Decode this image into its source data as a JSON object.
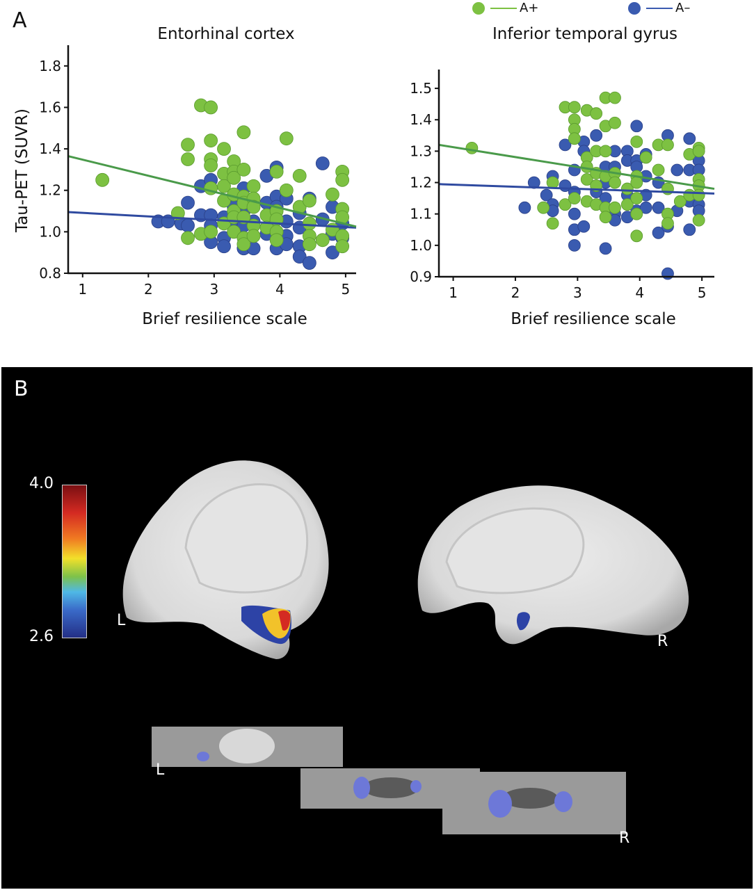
{
  "panel_a_label": "A",
  "panel_b_label": "B",
  "legend": [
    {
      "label": "A+",
      "color": "#7dc142"
    },
    {
      "label": "A–",
      "color": "#3a5bb0"
    }
  ],
  "chart_data": [
    {
      "type": "scatter",
      "title": "Entorhinal cortex",
      "xlabel": "Brief resilience scale",
      "ylabel": "Tau-PET (SUVR)",
      "xlim": [
        0.78,
        5.16
      ],
      "ylim": [
        0.8,
        1.9
      ],
      "xticks": [
        1,
        2,
        3,
        4,
        5
      ],
      "yticks": [
        0.8,
        1.0,
        1.2,
        1.4,
        1.6,
        1.8
      ],
      "ytick_labels": [
        "0.8",
        "1.0",
        "1.2",
        "1.4",
        "1.6",
        "1.8"
      ],
      "grid": false,
      "series": [
        {
          "name": "A–",
          "color": "#3a5bb0",
          "points": [
            [
              2.15,
              1.05
            ],
            [
              2.3,
              1.05
            ],
            [
              2.5,
              1.04
            ],
            [
              2.6,
              1.14
            ],
            [
              2.6,
              1.03
            ],
            [
              2.8,
              1.22
            ],
            [
              2.8,
              1.08
            ],
            [
              2.95,
              1.25
            ],
            [
              2.95,
              1.08
            ],
            [
              2.95,
              1.03
            ],
            [
              2.95,
              0.95
            ],
            [
              3.15,
              1.07
            ],
            [
              3.15,
              0.97
            ],
            [
              3.15,
              0.93
            ],
            [
              3.3,
              1.12
            ],
            [
              3.3,
              1.05
            ],
            [
              3.45,
              1.21
            ],
            [
              3.45,
              1.1
            ],
            [
              3.45,
              1.03
            ],
            [
              3.45,
              0.92
            ],
            [
              3.6,
              1.05
            ],
            [
              3.6,
              0.92
            ],
            [
              3.8,
              1.27
            ],
            [
              3.8,
              1.14
            ],
            [
              3.8,
              0.99
            ],
            [
              3.95,
              1.31
            ],
            [
              3.95,
              1.17
            ],
            [
              3.95,
              1.12
            ],
            [
              3.95,
              0.92
            ],
            [
              4.1,
              1.16
            ],
            [
              4.1,
              1.05
            ],
            [
              4.1,
              0.98
            ],
            [
              4.1,
              0.94
            ],
            [
              4.3,
              1.09
            ],
            [
              4.3,
              1.02
            ],
            [
              4.3,
              0.93
            ],
            [
              4.3,
              0.88
            ],
            [
              4.45,
              1.16
            ],
            [
              4.45,
              0.85
            ],
            [
              4.65,
              1.33
            ],
            [
              4.65,
              1.06
            ],
            [
              4.8,
              1.12
            ],
            [
              4.8,
              0.99
            ],
            [
              4.8,
              0.9
            ],
            [
              4.95,
              1.04
            ],
            [
              4.95,
              0.97
            ]
          ],
          "fit": [
            [
              0.78,
              1.095
            ],
            [
              5.16,
              1.02
            ]
          ]
        },
        {
          "name": "A+",
          "color": "#7dc142",
          "points": [
            [
              1.3,
              1.25
            ],
            [
              2.45,
              1.09
            ],
            [
              2.6,
              1.42
            ],
            [
              2.6,
              1.35
            ],
            [
              2.6,
              0.97
            ],
            [
              2.8,
              1.61
            ],
            [
              2.95,
              1.6
            ],
            [
              2.8,
              0.99
            ],
            [
              2.95,
              1.44
            ],
            [
              2.95,
              1.35
            ],
            [
              2.95,
              1.32
            ],
            [
              2.95,
              1.21
            ],
            [
              2.95,
              1.0
            ],
            [
              3.15,
              1.4
            ],
            [
              3.15,
              1.28
            ],
            [
              3.15,
              1.22
            ],
            [
              3.15,
              1.15
            ],
            [
              3.15,
              1.04
            ],
            [
              3.3,
              1.34
            ],
            [
              3.3,
              1.29
            ],
            [
              3.3,
              1.26
            ],
            [
              3.3,
              1.18
            ],
            [
              3.3,
              1.1
            ],
            [
              3.3,
              1.07
            ],
            [
              3.3,
              1.0
            ],
            [
              3.45,
              1.48
            ],
            [
              3.45,
              1.3
            ],
            [
              3.45,
              1.17
            ],
            [
              3.45,
              1.14
            ],
            [
              3.45,
              1.07
            ],
            [
              3.45,
              0.97
            ],
            [
              3.45,
              0.94
            ],
            [
              3.6,
              1.22
            ],
            [
              3.6,
              1.16
            ],
            [
              3.6,
              1.12
            ],
            [
              3.6,
              1.03
            ],
            [
              3.6,
              0.98
            ],
            [
              3.8,
              1.08
            ],
            [
              3.8,
              1.02
            ],
            [
              3.95,
              1.29
            ],
            [
              3.95,
              1.1
            ],
            [
              3.95,
              1.06
            ],
            [
              3.95,
              1.0
            ],
            [
              3.95,
              0.96
            ],
            [
              4.1,
              1.45
            ],
            [
              4.1,
              1.2
            ],
            [
              4.3,
              1.27
            ],
            [
              4.3,
              1.12
            ],
            [
              4.45,
              1.15
            ],
            [
              4.45,
              1.04
            ],
            [
              4.45,
              0.98
            ],
            [
              4.45,
              0.94
            ],
            [
              4.65,
              0.96
            ],
            [
              4.8,
              1.18
            ],
            [
              4.8,
              1.01
            ],
            [
              4.95,
              1.29
            ],
            [
              4.95,
              1.25
            ],
            [
              4.95,
              1.11
            ],
            [
              4.95,
              1.07
            ],
            [
              4.95,
              0.98
            ],
            [
              4.95,
              0.93
            ]
          ],
          "fit": [
            [
              0.78,
              1.365
            ],
            [
              5.16,
              1.025
            ]
          ]
        }
      ]
    },
    {
      "type": "scatter",
      "title": "Inferior temporal gyrus",
      "xlabel": "Brief resilience scale",
      "ylabel": "",
      "xlim": [
        0.77,
        5.2
      ],
      "ylim": [
        0.9,
        1.56
      ],
      "xticks": [
        1,
        2,
        3,
        4,
        5
      ],
      "yticks": [
        0.9,
        1.0,
        1.1,
        1.2,
        1.3,
        1.4,
        1.5
      ],
      "ytick_labels": [
        "0.9",
        "1.0",
        "1.1",
        "1.2",
        "1.3",
        "1.4",
        "1.5"
      ],
      "grid": false,
      "series": [
        {
          "name": "A–",
          "color": "#3a5bb0",
          "points": [
            [
              2.15,
              1.12
            ],
            [
              2.3,
              1.2
            ],
            [
              2.5,
              1.16
            ],
            [
              2.6,
              1.22
            ],
            [
              2.6,
              1.13
            ],
            [
              2.6,
              1.11
            ],
            [
              2.8,
              1.32
            ],
            [
              2.8,
              1.19
            ],
            [
              2.95,
              1.24
            ],
            [
              2.95,
              1.17
            ],
            [
              2.95,
              1.1
            ],
            [
              2.95,
              1.05
            ],
            [
              2.95,
              1.0
            ],
            [
              3.1,
              1.33
            ],
            [
              3.1,
              1.3
            ],
            [
              3.1,
              1.06
            ],
            [
              3.3,
              1.35
            ],
            [
              3.3,
              1.17
            ],
            [
              3.45,
              1.25
            ],
            [
              3.45,
              1.2
            ],
            [
              3.45,
              1.15
            ],
            [
              3.45,
              0.99
            ],
            [
              3.6,
              1.3
            ],
            [
              3.6,
              1.25
            ],
            [
              3.6,
              1.1
            ],
            [
              3.6,
              1.08
            ],
            [
              3.8,
              1.3
            ],
            [
              3.8,
              1.27
            ],
            [
              3.8,
              1.16
            ],
            [
              3.8,
              1.09
            ],
            [
              3.95,
              1.38
            ],
            [
              3.95,
              1.27
            ],
            [
              3.95,
              1.25
            ],
            [
              3.95,
              1.11
            ],
            [
              4.1,
              1.29
            ],
            [
              4.1,
              1.22
            ],
            [
              4.1,
              1.16
            ],
            [
              4.1,
              1.12
            ],
            [
              4.3,
              1.2
            ],
            [
              4.3,
              1.12
            ],
            [
              4.3,
              1.04
            ],
            [
              4.45,
              1.35
            ],
            [
              4.45,
              1.06
            ],
            [
              4.45,
              0.91
            ],
            [
              4.6,
              1.24
            ],
            [
              4.6,
              1.11
            ],
            [
              4.8,
              1.34
            ],
            [
              4.8,
              1.24
            ],
            [
              4.8,
              1.14
            ],
            [
              4.8,
              1.05
            ],
            [
              4.95,
              1.27
            ],
            [
              4.95,
              1.24
            ],
            [
              4.95,
              1.13
            ],
            [
              4.95,
              1.11
            ]
          ],
          "fit": [
            [
              0.77,
              1.195
            ],
            [
              5.2,
              1.165
            ]
          ]
        },
        {
          "name": "A+",
          "color": "#7dc142",
          "points": [
            [
              1.3,
              1.31
            ],
            [
              2.45,
              1.12
            ],
            [
              2.6,
              1.2
            ],
            [
              2.6,
              1.07
            ],
            [
              2.8,
              1.44
            ],
            [
              2.8,
              1.13
            ],
            [
              2.95,
              1.44
            ],
            [
              2.95,
              1.4
            ],
            [
              2.95,
              1.37
            ],
            [
              2.95,
              1.34
            ],
            [
              2.95,
              1.15
            ],
            [
              3.15,
              1.43
            ],
            [
              3.15,
              1.28
            ],
            [
              3.15,
              1.25
            ],
            [
              3.15,
              1.21
            ],
            [
              3.15,
              1.14
            ],
            [
              3.3,
              1.42
            ],
            [
              3.3,
              1.3
            ],
            [
              3.3,
              1.23
            ],
            [
              3.3,
              1.19
            ],
            [
              3.3,
              1.13
            ],
            [
              3.45,
              1.47
            ],
            [
              3.45,
              1.38
            ],
            [
              3.45,
              1.3
            ],
            [
              3.45,
              1.22
            ],
            [
              3.45,
              1.12
            ],
            [
              3.45,
              1.09
            ],
            [
              3.6,
              1.47
            ],
            [
              3.6,
              1.39
            ],
            [
              3.6,
              1.23
            ],
            [
              3.6,
              1.2
            ],
            [
              3.6,
              1.12
            ],
            [
              3.8,
              1.18
            ],
            [
              3.8,
              1.13
            ],
            [
              3.95,
              1.33
            ],
            [
              3.95,
              1.22
            ],
            [
              3.95,
              1.2
            ],
            [
              3.95,
              1.15
            ],
            [
              3.95,
              1.1
            ],
            [
              3.95,
              1.03
            ],
            [
              4.1,
              1.28
            ],
            [
              4.3,
              1.32
            ],
            [
              4.3,
              1.24
            ],
            [
              4.45,
              1.32
            ],
            [
              4.45,
              1.18
            ],
            [
              4.45,
              1.1
            ],
            [
              4.45,
              1.07
            ],
            [
              4.65,
              1.14
            ],
            [
              4.8,
              1.29
            ],
            [
              4.8,
              1.16
            ],
            [
              4.95,
              1.31
            ],
            [
              4.95,
              1.3
            ],
            [
              4.95,
              1.21
            ],
            [
              4.95,
              1.19
            ],
            [
              4.95,
              1.16
            ],
            [
              4.95,
              1.08
            ]
          ],
          "fit": [
            [
              0.77,
              1.32
            ],
            [
              5.2,
              1.18
            ]
          ]
        }
      ]
    }
  ],
  "panel_b": {
    "colorbar": {
      "max_label": "4.0",
      "min_label": "2.6",
      "min": 2.6,
      "max": 4.0
    },
    "surface_left_label": "L",
    "surface_right_label": "R",
    "slice_left_label": "L",
    "slice_right_label": "R"
  }
}
